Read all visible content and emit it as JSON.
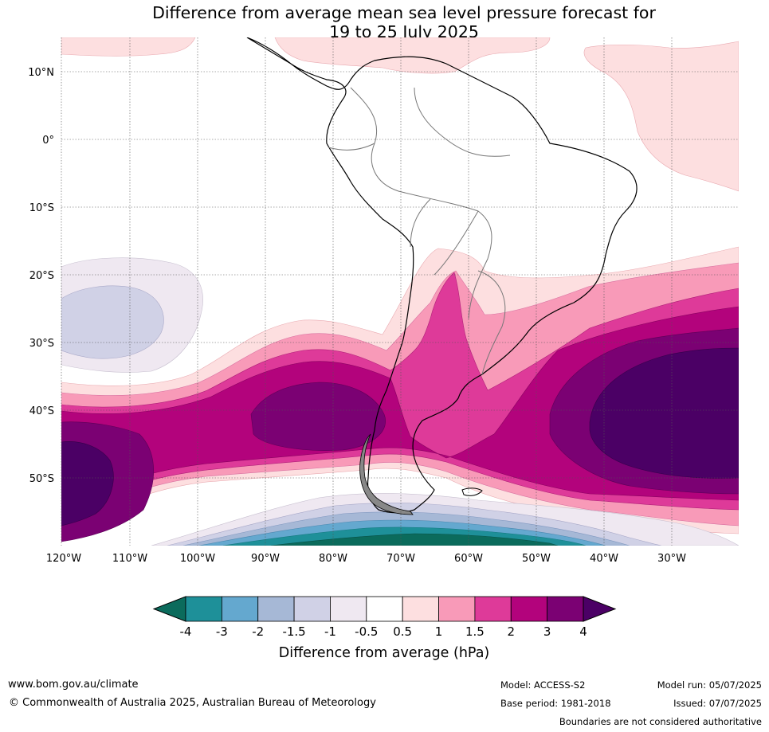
{
  "title": {
    "line1": "Difference from average mean sea level pressure forecast for",
    "line2": "19 to 25 July 2025"
  },
  "map": {
    "region": "South America and surrounding oceans",
    "lon_labels": [
      "120°W",
      "110°W",
      "100°W",
      "90°W",
      "80°W",
      "70°W",
      "60°W",
      "50°W",
      "40°W",
      "30°W"
    ],
    "lat_labels": [
      "10°N",
      "0°",
      "10°S",
      "20°S",
      "30°S",
      "40°S",
      "50°S"
    ]
  },
  "colorbar": {
    "label": "Difference from average (hPa)",
    "ticks": [
      "-4",
      "-3",
      "-2",
      "-1.5",
      "-1",
      "-0.5",
      "0.5",
      "1",
      "1.5",
      "2",
      "3",
      "4"
    ],
    "colors": [
      "#0b6b5c",
      "#1e9099",
      "#64a8cf",
      "#a6b8d6",
      "#d0d1e6",
      "#efe8f1",
      "#ffffff",
      "#fddfe0",
      "#f89ab8",
      "#de3a99",
      "#b3037c",
      "#7b0173",
      "#4b0065"
    ],
    "extend": "both"
  },
  "footer": {
    "url": "www.bom.gov.au/climate",
    "copyright": "© Commonwealth of Australia 2025, Australian Bureau of Meteorology",
    "model": "Model: ACCESS-S2",
    "base_period": "Base period: 1981-2018",
    "model_run": "Model run: 05/07/2025",
    "issued": "Issued: 07/07/2025",
    "boundaries": "Boundaries are not considered authoritative"
  }
}
